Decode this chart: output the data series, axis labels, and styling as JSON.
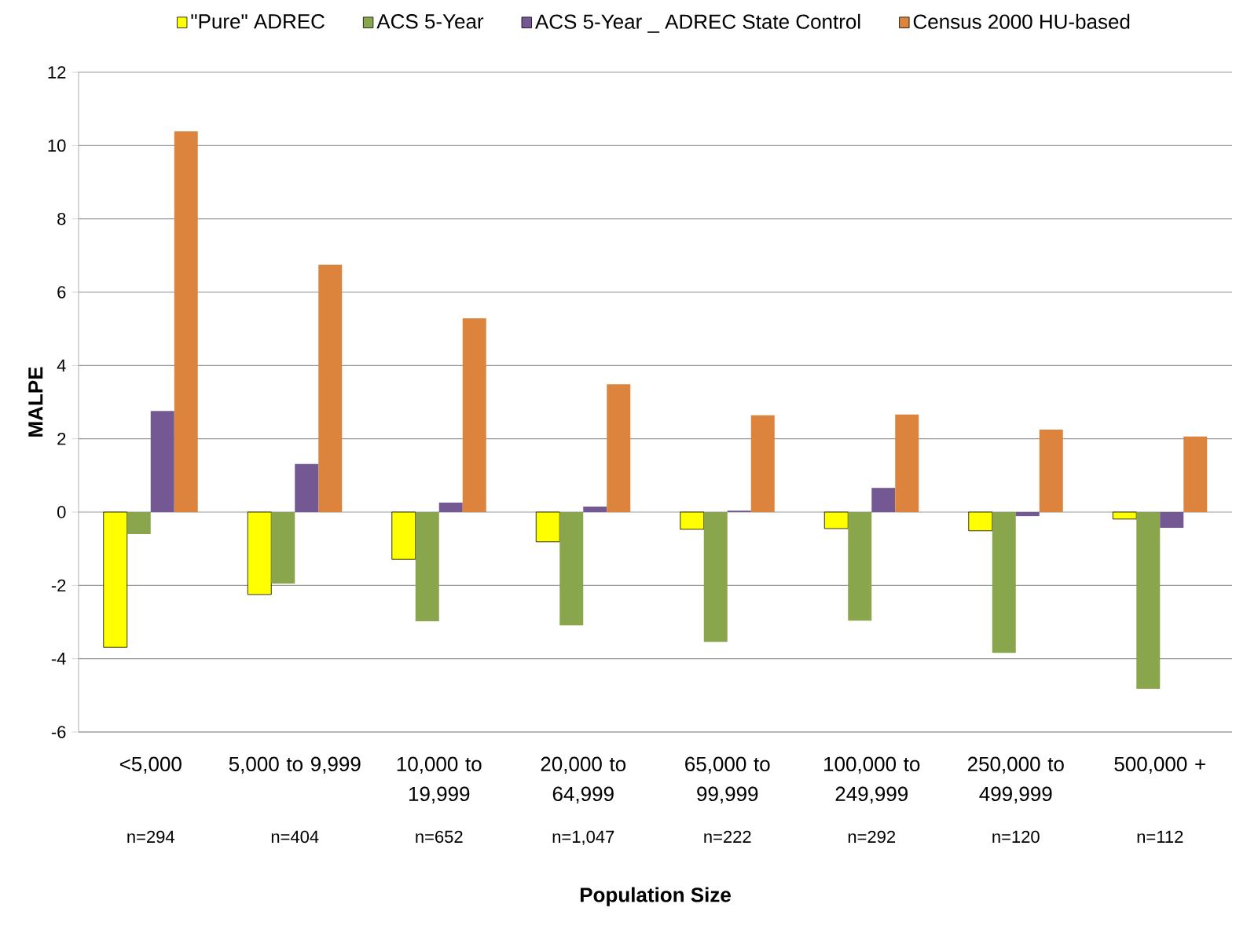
{
  "chart_data": {
    "type": "bar",
    "xlabel": "Population Size",
    "ylabel": "MALPE",
    "categories": [
      "<5,000",
      "5,000 to 9,999",
      "10,000 to 19,999",
      "20,000 to 64,999",
      "65,000 to 99,999",
      "100,000 to 249,999",
      "250,000 to 499,999",
      "500,000 +"
    ],
    "series": [
      {
        "name": "\"Pure\" ADREC",
        "color": "#ffff00",
        "values": [
          -3.69,
          -2.25,
          -1.29,
          -0.81,
          -0.47,
          -0.45,
          -0.51,
          -0.19
        ]
      },
      {
        "name": "ACS 5-Year",
        "color": "#8aa64d",
        "values": [
          -0.6,
          -1.95,
          -2.98,
          -3.09,
          -3.54,
          -2.96,
          -3.84,
          -4.82
        ]
      },
      {
        "name": "ACS 5-Year _  ADREC State Control",
        "color": "#735894",
        "values": [
          2.76,
          1.31,
          0.26,
          0.15,
          0.04,
          0.66,
          -0.11,
          -0.43
        ]
      },
      {
        "name": "Census 2000 HU-based",
        "color": "#dc843e",
        "values": [
          10.39,
          6.75,
          5.29,
          3.49,
          2.64,
          2.66,
          2.25,
          2.06
        ]
      }
    ],
    "ylim": [
      -6,
      12
    ],
    "yticks": [
      -6,
      -4,
      -2,
      0,
      2,
      4,
      6,
      8,
      10,
      12
    ],
    "grid": "y",
    "legend": "top",
    "annotations": [
      "n=294",
      "n=404",
      "n=652",
      "n=1,047",
      "n=222",
      "n=292",
      "n=120",
      "n=112"
    ]
  }
}
